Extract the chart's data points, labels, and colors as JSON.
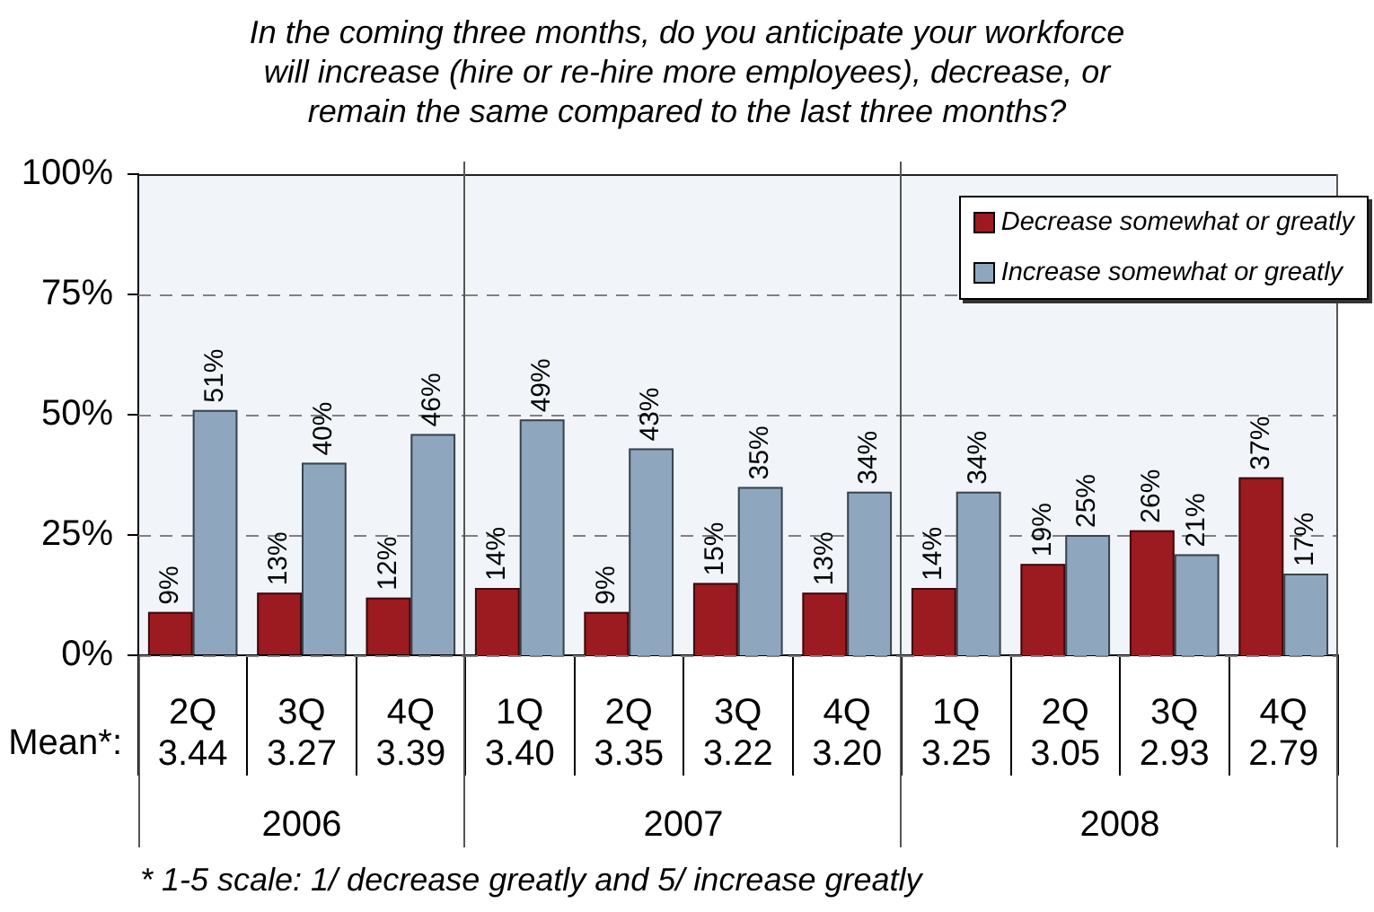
{
  "chart_data": [
    {
      "type": "bar",
      "title": "In the coming three months, do you anticipate your workforce will increase (hire or re-hire more employees), decrease, or remain the same compared to the last three months?",
      "xlabel": "2006",
      "categories": [
        "2Q\n3.44",
        "3Q\n3.27",
        "4Q\n3.39"
      ],
      "series": [
        {
          "color": "#9b1b20",
          "values": [
            9,
            13,
            12
          ],
          "value_labels": [
            "9%",
            "13%",
            "12%"
          ]
        },
        {
          "color": "#8fa7be",
          "values": [
            51,
            40,
            46
          ],
          "value_labels": [
            "51%",
            "40%",
            "46%"
          ]
        }
      ],
      "ylim": [
        0,
        100
      ],
      "yticks": [
        {
          "value": 0,
          "label": "0%"
        },
        {
          "value": 25,
          "label": "25%"
        },
        {
          "value": 50,
          "label": "50%"
        },
        {
          "value": 75,
          "label": "75%"
        },
        {
          "value": 100,
          "label": "100%"
        }
      ],
      "grid": "y",
      "annotations": [
        "Mean*:",
        "* 1-5 scale: 1/ decrease greatly and 5/ increase greatly"
      ]
    },
    {
      "type": "bar",
      "xlabel": "2007",
      "categories": [
        "1Q\n3.40",
        "2Q\n3.35",
        "3Q\n3.22",
        "4Q\n3.20"
      ],
      "series": [
        {
          "color": "#9b1b20",
          "values": [
            14,
            9,
            15,
            13
          ],
          "value_labels": [
            "14%",
            "9%",
            "15%",
            "13%"
          ]
        },
        {
          "color": "#8fa7be",
          "values": [
            49,
            43,
            35,
            34
          ],
          "value_labels": [
            "49%",
            "43%",
            "35%",
            "34%"
          ]
        }
      ],
      "ylim": [
        0,
        100
      ],
      "yticks": [
        0,
        25,
        50,
        75,
        100
      ],
      "grid": "y",
      "tick_labels": "x"
    },
    {
      "type": "bar",
      "xlabel": "2008",
      "categories": [
        "1Q\n3.25",
        "2Q\n3.05",
        "3Q\n2.93",
        "4Q\n2.79"
      ],
      "series": [
        {
          "name": "Decrease somewhat or greatly",
          "color": "#9b1b20",
          "values": [
            14,
            19,
            26,
            37
          ],
          "value_labels": [
            "14%",
            "19%",
            "26%",
            "37%"
          ]
        },
        {
          "name": "Increase somewhat or greatly",
          "color": "#8fa7be",
          "values": [
            34,
            25,
            21,
            17
          ],
          "value_labels": [
            "34%",
            "25%",
            "21%",
            "17%"
          ]
        }
      ],
      "ylim": [
        0,
        100
      ],
      "yticks": [
        0,
        25,
        50,
        75,
        100
      ],
      "grid": "y",
      "tick_labels": "x",
      "legend": "top right"
    }
  ]
}
